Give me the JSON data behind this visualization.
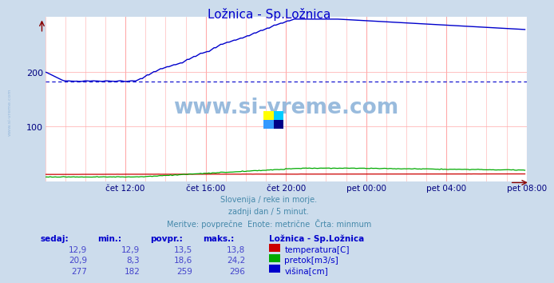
{
  "title": "Ložnica - Sp.Ložnica",
  "title_color": "#0000cc",
  "bg_color": "#ccdcec",
  "plot_bg_color": "#ffffff",
  "grid_v_color": "#ffaaaa",
  "grid_h_color": "#ffaaaa",
  "ylabel_color": "#000080",
  "xlabel_color": "#000080",
  "watermark_text": "www.si-vreme.com",
  "watermark_color": "#99bbdd",
  "side_text": "www.si-vreme.com",
  "side_text_color": "#99bbdd",
  "subtitle_lines": [
    "Slovenija / reke in morje.",
    "zadnji dan / 5 minut.",
    "Meritve: povprečne  Enote: metrične  Črta: minmum"
  ],
  "subtitle_color": "#4488aa",
  "table_header": [
    "sedaj:",
    "min.:",
    "povpr.:",
    "maks.:",
    "Ložnica - Sp.Ložnica"
  ],
  "table_header_color": "#0000cc",
  "table_value_color": "#4444cc",
  "table_rows": [
    {
      "sedaj": "12,9",
      "min": "12,9",
      "povpr": "13,5",
      "maks": "13,8",
      "label": "temperatura[C]",
      "color": "#cc0000"
    },
    {
      "sedaj": "20,9",
      "min": "8,3",
      "povpr": "18,6",
      "maks": "24,2",
      "label": "pretok[m3/s]",
      "color": "#00aa00"
    },
    {
      "sedaj": "277",
      "min": "182",
      "povpr": "259",
      "maks": "296",
      "label": "višina[cm]",
      "color": "#0000cc"
    }
  ],
  "ylim": [
    0,
    300
  ],
  "yticks": [
    100,
    200
  ],
  "avg_line_value": 182,
  "avg_line_color": "#0000cc",
  "time_labels": [
    "čet 12:00",
    "čet 16:00",
    "čet 20:00",
    "pet 00:00",
    "pet 04:00",
    "pet 08:00"
  ],
  "tick_positions": [
    48,
    96,
    144,
    192,
    240,
    288
  ],
  "n_points": 288,
  "logo_colors": [
    "#ffff00",
    "#00ccff",
    "#3399ff",
    "#000088"
  ]
}
